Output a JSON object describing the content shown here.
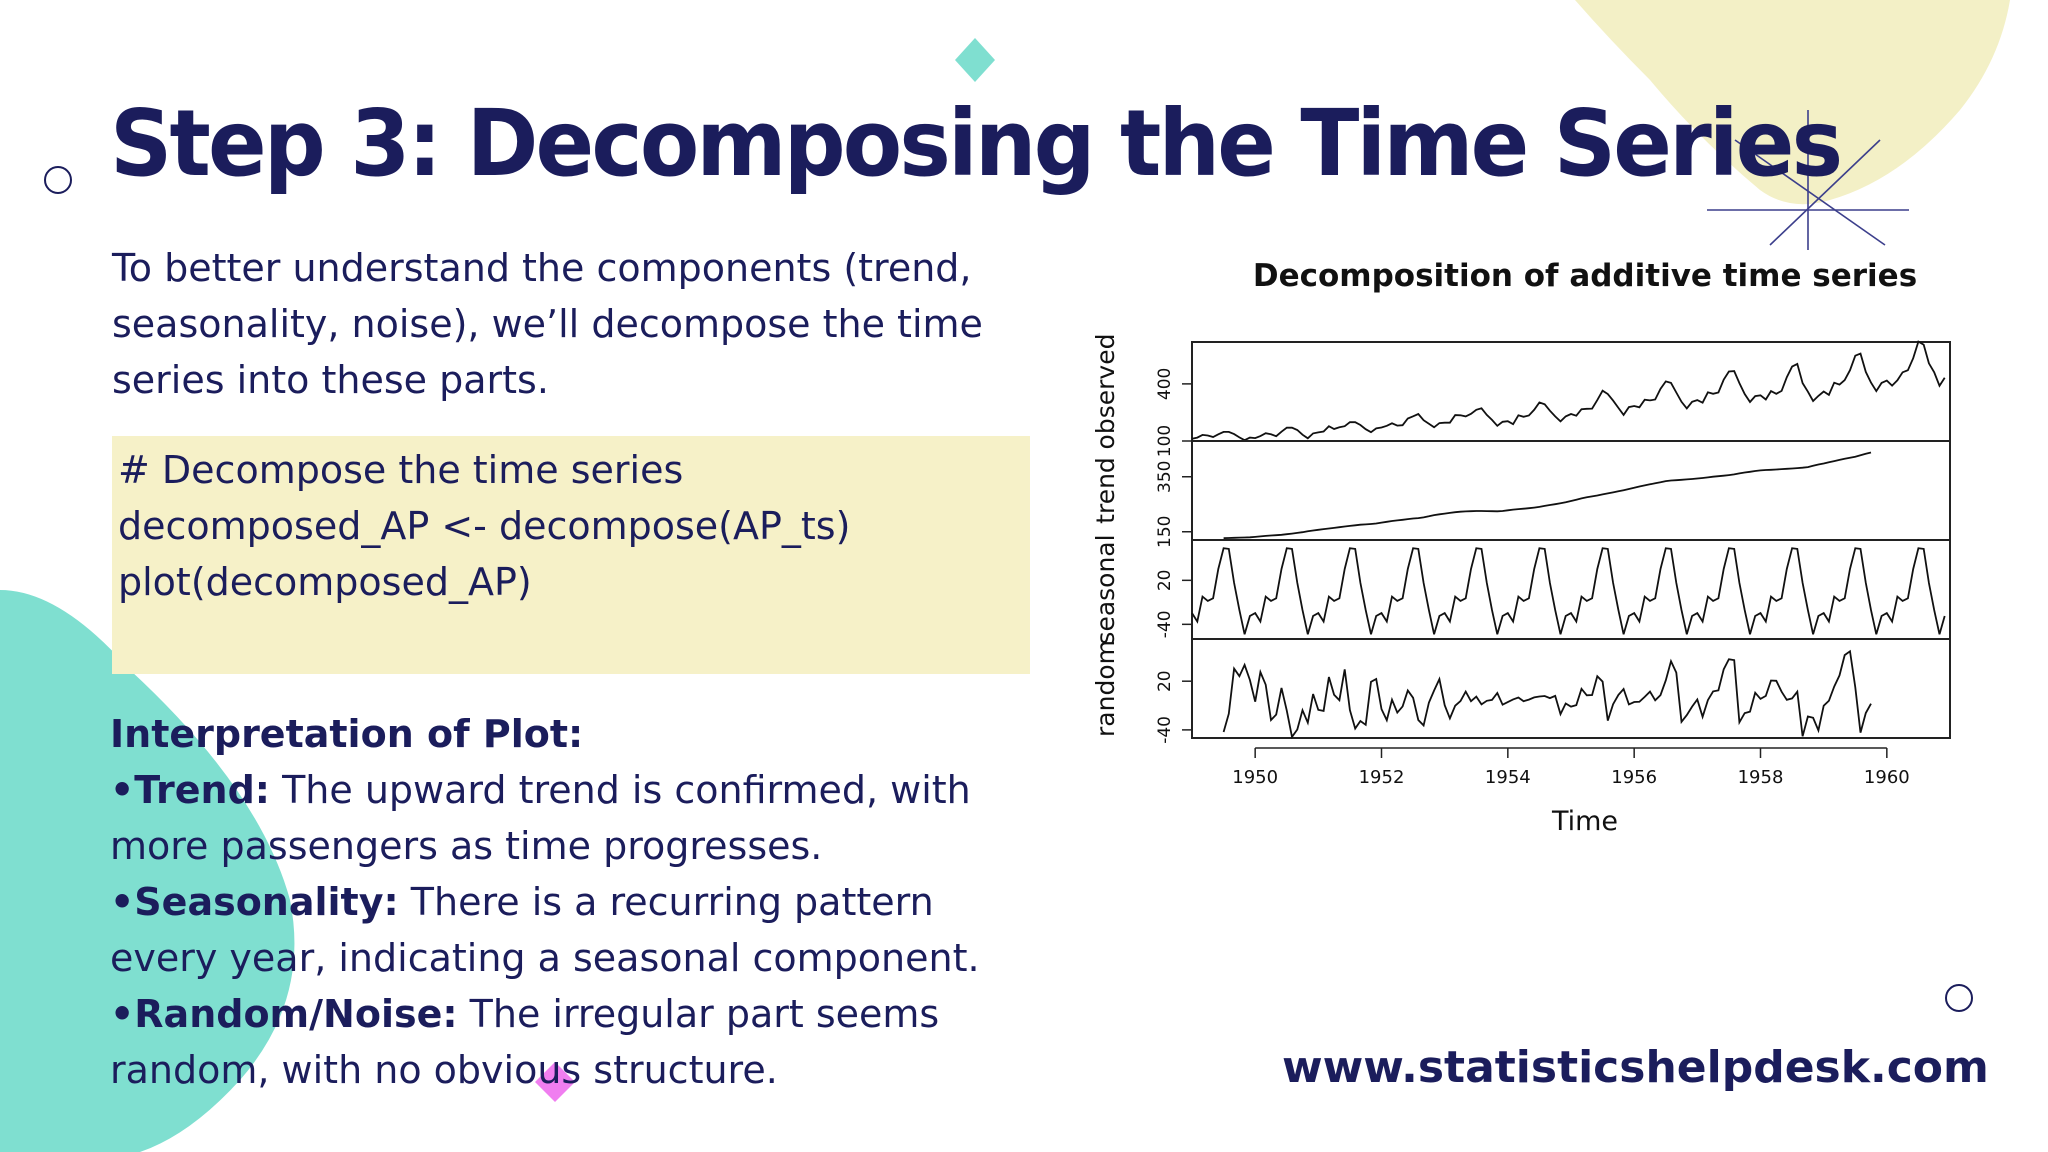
{
  "slide": {
    "title": "Step 3: Decomposing the Time Series",
    "intro": "To better understand the components (trend, seasonality, noise), we’ll decompose the time series into these parts.",
    "code_lines": [
      "# Decompose the time series",
      "decomposed_AP <- decompose(AP_ts)",
      "plot(decomposed_AP)"
    ],
    "interpretation": {
      "heading": "Interpretation of Plot:",
      "items": [
        {
          "bullet": "•",
          "label": "Trend:",
          "text": " The upward trend is confirmed, with more passengers as time progresses."
        },
        {
          "bullet": "•",
          "label": "Seasonality:",
          "text": " There is a recurring pattern every year, indicating a seasonal component."
        },
        {
          "bullet": "•",
          "label": "Random/Noise:",
          "text": " The irregular part seems random, with no obvious structure."
        }
      ]
    },
    "footer_url": "www.statisticshelpdesk.com"
  },
  "colors": {
    "navy": "#1b1d5c",
    "teal": "#7fdfd0",
    "pale_yellow": "#f3f0c6",
    "code_bg": "#f6f1c8",
    "pink": "#f07ef0"
  },
  "chart_data": {
    "type": "line",
    "title": "Decomposition of additive time series",
    "xlabel": "Time",
    "xlim": [
      1949,
      1961
    ],
    "x_ticks": [
      "1950",
      "1952",
      "1954",
      "1956",
      "1958",
      "1960"
    ],
    "panels": [
      {
        "name": "observed",
        "ylabel": "observed",
        "ylim": [
          100,
          620
        ],
        "y_ticks": [
          "100",
          "400"
        ],
        "start": 1949,
        "frequency": 12,
        "values": [
          112,
          118,
          132,
          129,
          121,
          135,
          148,
          148,
          136,
          119,
          104,
          118,
          115,
          126,
          141,
          135,
          125,
          149,
          170,
          170,
          158,
          133,
          114,
          140,
          145,
          150,
          178,
          163,
          172,
          178,
          199,
          199,
          184,
          162,
          146,
          166,
          171,
          180,
          193,
          181,
          183,
          218,
          230,
          242,
          209,
          191,
          172,
          194,
          196,
          196,
          236,
          235,
          229,
          243,
          264,
          272,
          237,
          211,
          180,
          201,
          204,
          188,
          235,
          227,
          234,
          264,
          302,
          293,
          259,
          229,
          203,
          229,
          242,
          233,
          267,
          269,
          270,
          315,
          364,
          347,
          312,
          274,
          237,
          278,
          284,
          277,
          317,
          313,
          318,
          374,
          413,
          405,
          355,
          306,
          271,
          306,
          315,
          301,
          356,
          348,
          355,
          422,
          465,
          467,
          404,
          347,
          305,
          336,
          340,
          318,
          362,
          348,
          363,
          435,
          491,
          505,
          404,
          359,
          310,
          337,
          360,
          342,
          406,
          396,
          420,
          472,
          548,
          559,
          463,
          407,
          362,
          405,
          417,
          391,
          419,
          461,
          472,
          535,
          622,
          606,
          508,
          461,
          390,
          432
        ]
      },
      {
        "name": "trend",
        "ylabel": "trend",
        "ylim": [
          120,
          480
        ],
        "y_ticks": [
          "150",
          "350"
        ],
        "start": 1949.5,
        "frequency": 12,
        "values": [
          126.79,
          127.25,
          127.96,
          128.58,
          129.0,
          129.75,
          131.25,
          133.08,
          134.92,
          136.42,
          137.42,
          138.75,
          140.92,
          143.17,
          145.71,
          148.42,
          151.54,
          154.71,
          157.12,
          159.54,
          161.83,
          164.12,
          166.67,
          169.08,
          171.25,
          173.58,
          175.46,
          176.83,
          178.04,
          180.17,
          183.12,
          186.21,
          189.04,
          191.29,
          193.58,
          195.83,
          198.04,
          199.75,
          202.21,
          206.25,
          210.42,
          213.38,
          215.83,
          218.5,
          220.92,
          222.92,
          224.08,
          224.71,
          225.33,
          225.33,
          224.96,
          224.58,
          224.46,
          225.54,
          228.0,
          230.46,
          232.25,
          233.92,
          235.62,
          237.75,
          240.5,
          243.96,
          247.17,
          250.25,
          253.5,
          257.12,
          261.83,
          266.67,
          271.12,
          275.21,
          278.5,
          281.96,
          285.75,
          289.33,
          293.25,
          297.17,
          301.0,
          305.46,
          309.96,
          314.42,
          318.62,
          322.38,
          326.17,
          329.96,
          334.12,
          336.25,
          337.54,
          339.08,
          340.54,
          341.92,
          343.62,
          345.42,
          347.58,
          350.12,
          351.96,
          353.79,
          355.92,
          358.58,
          362.12,
          365.29,
          368.12,
          370.75,
          373.12,
          374.54,
          375.21,
          376.38,
          377.75,
          379.04,
          380.04,
          381.42,
          382.88,
          385.25,
          389.92,
          394.42,
          398.33,
          402.92,
          407.08,
          411.17,
          415.29,
          418.92,
          423.04,
          428.5,
          433.92,
          438.33
        ]
      },
      {
        "name": "seasonal",
        "ylabel": "seasonal",
        "ylim": [
          -60,
          75
        ],
        "y_ticks": [
          "-40",
          "20"
        ],
        "start": 1949,
        "frequency": 12,
        "pattern": [
          -24.75,
          -36.19,
          -2.24,
          -8.04,
          -4.51,
          35.4,
          63.83,
          62.82,
          16.52,
          -20.64,
          -53.59,
          -28.62
        ]
      },
      {
        "name": "random",
        "ylabel": "random",
        "ylim": [
          -50,
          72
        ],
        "y_ticks": [
          "-40",
          "20"
        ],
        "start": 1949.5,
        "frequency": 12,
        "values": [
          -42.6,
          -20.1,
          35.5,
          26.1,
          40.1,
          21.5,
          -5.3,
          31.2,
          15.7,
          -27.8,
          -21.2,
          11.8,
          -16.3,
          -48.7,
          -39.5,
          -15.8,
          -31.1,
          4.2,
          -15.4,
          -16.6,
          25.2,
          3.2,
          -3.4,
          34.5,
          -15.6,
          -38.3,
          -29.1,
          -33.7,
          19.2,
          22.7,
          -14.4,
          -28.1,
          -2.8,
          -18.7,
          -11.0,
          8.5,
          -0.5,
          -27.8,
          -34.5,
          -6.4,
          8.5,
          22.6,
          -9.6,
          -25.9,
          -10.2,
          -4.4,
          7.2,
          -4.6,
          1.0,
          -8.6,
          -4.2,
          -3.1,
          5.5,
          -9.0,
          -5.7,
          -2.4,
          -0.1,
          -4.6,
          -2.7,
          0.0,
          1.1,
          1.7,
          -0.8,
          1.9,
          -20.5,
          -7.5,
          -11.3,
          -9.5,
          10.6,
          2.6,
          3.0,
          26.1,
          19.5,
          -28.6,
          -8.4,
          3.1,
          10.4,
          -8.6,
          -5.6,
          -5.4,
          0.7,
          7.2,
          -3.5,
          2.9,
          21.1,
          44.6,
          30.6,
          -30.0,
          -21.8,
          -11.3,
          -2.6,
          -23.9,
          -3.3,
          7.4,
          8.6,
          34.7,
          47.1,
          46.0,
          -30.6,
          -19.3,
          -17.5,
          5.8,
          -1.8,
          1.9,
          20.9,
          20.5,
          7.1,
          -2.9,
          -1.2,
          7.0,
          -47.9,
          -23.5,
          -25.1,
          -40.6,
          -10.2,
          -4.2,
          13.4,
          27.2,
          52.1,
          56.8,
          12.3,
          -43.4,
          -19.2,
          -7.7
        ]
      }
    ]
  }
}
